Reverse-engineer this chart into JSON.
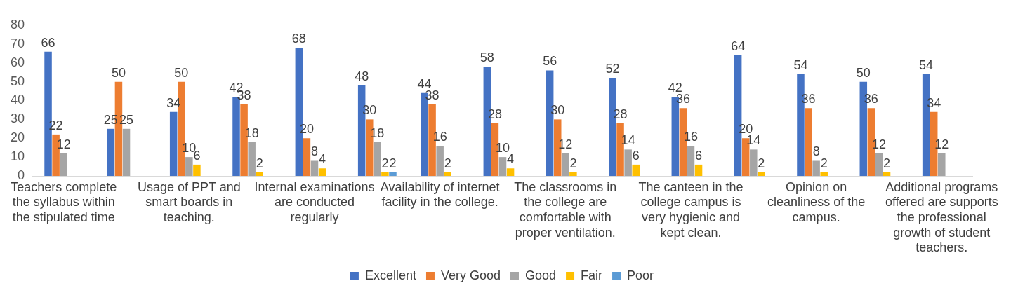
{
  "chart_data": {
    "type": "bar",
    "categories": [
      "Teachers complete the syllabus within the stipulated time",
      null,
      "Usage of PPT and smart boards in teaching.",
      null,
      "Internal examinations are conducted regularly",
      null,
      "Availability of internet facility in the college.",
      null,
      "The classrooms in the college are comfortable with proper ventilation.",
      null,
      "The canteen in the college campus is very hygienic and kept clean.",
      null,
      "Opinion on cleanliness of the campus.",
      null,
      "Additional programs offered are supports the professional growth of student teachers."
    ],
    "series": [
      {
        "name": "Excellent",
        "color": "#4472c4",
        "values": [
          66,
          25,
          34,
          42,
          68,
          48,
          44,
          58,
          56,
          52,
          42,
          64,
          54,
          50,
          54
        ]
      },
      {
        "name": "Very Good",
        "color": "#ed7d31",
        "values": [
          22,
          50,
          50,
          38,
          20,
          30,
          38,
          28,
          30,
          28,
          36,
          20,
          36,
          36,
          34
        ]
      },
      {
        "name": "Good",
        "color": "#a5a5a5",
        "values": [
          12,
          25,
          10,
          18,
          8,
          18,
          16,
          10,
          12,
          14,
          16,
          14,
          8,
          12,
          12
        ]
      },
      {
        "name": "Fair",
        "color": "#ffc000",
        "values": [
          null,
          null,
          6,
          2,
          4,
          2,
          2,
          4,
          2,
          6,
          6,
          2,
          2,
          2,
          null
        ]
      },
      {
        "name": "Poor",
        "color": "#5b9bd5",
        "values": [
          null,
          null,
          null,
          null,
          null,
          2,
          null,
          null,
          null,
          null,
          null,
          null,
          null,
          null,
          null
        ]
      }
    ],
    "ylim": [
      0,
      80
    ],
    "yticks": [
      0,
      10,
      20,
      30,
      40,
      50,
      60,
      70,
      80
    ],
    "grid": false,
    "legend": "bottom",
    "data_labels": true
  }
}
